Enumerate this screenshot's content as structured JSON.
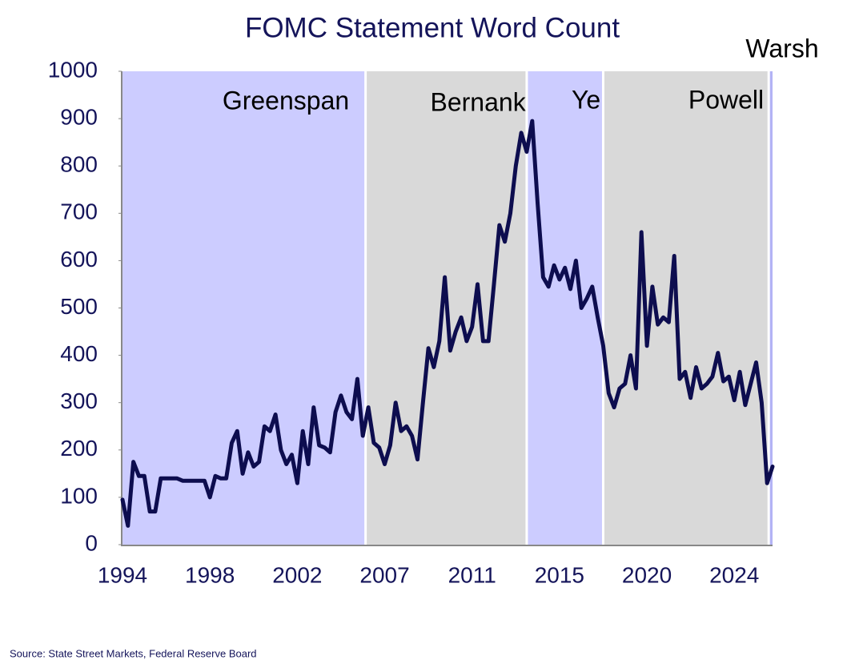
{
  "chart_data": {
    "type": "line",
    "title": "FOMC Statement Word Count",
    "source": "Source: State Street Markets, Federal Reserve Board",
    "categories": [
      "1994",
      null,
      null,
      null,
      null,
      null,
      null,
      null,
      null,
      null,
      null,
      null,
      null,
      null,
      null,
      null,
      "1998",
      null,
      null,
      null,
      null,
      null,
      null,
      null,
      null,
      null,
      null,
      null,
      null,
      null,
      null,
      null,
      "2002",
      null,
      null,
      null,
      null,
      null,
      null,
      null,
      null,
      null,
      null,
      null,
      null,
      null,
      null,
      null,
      "2007",
      null,
      null,
      null,
      null,
      null,
      null,
      null,
      null,
      null,
      null,
      null,
      null,
      null,
      null,
      null,
      "2011",
      null,
      null,
      null,
      null,
      null,
      null,
      null,
      null,
      null,
      null,
      null,
      null,
      null,
      null,
      null,
      "2015",
      null,
      null,
      null,
      null,
      null,
      null,
      null,
      null,
      null,
      null,
      null,
      null,
      null,
      null,
      null,
      "2020",
      null,
      null,
      null,
      null,
      null,
      null,
      null,
      null,
      null,
      null,
      null,
      null,
      null,
      null,
      null,
      "2024",
      null,
      null,
      null,
      null,
      null,
      null,
      null
    ],
    "series": [
      {
        "color": "#0d0d4f",
        "values": [
          95,
          40,
          175,
          145,
          145,
          70,
          70,
          140,
          140,
          140,
          140,
          135,
          135,
          135,
          135,
          135,
          100,
          145,
          140,
          140,
          215,
          240,
          150,
          195,
          165,
          175,
          250,
          240,
          275,
          200,
          170,
          190,
          130,
          240,
          170,
          290,
          210,
          205,
          195,
          280,
          315,
          280,
          265,
          350,
          230,
          290,
          215,
          205,
          170,
          210,
          300,
          240,
          250,
          230,
          180,
          300,
          415,
          375,
          430,
          565,
          410,
          450,
          480,
          430,
          460,
          550,
          430,
          430,
          550,
          675,
          640,
          700,
          800,
          870,
          830,
          895,
          720,
          565,
          545,
          590,
          560,
          585,
          540,
          600,
          500,
          520,
          545,
          480,
          420,
          320,
          290,
          330,
          340,
          400,
          330,
          660,
          420,
          545,
          465,
          480,
          470,
          610,
          350,
          365,
          310,
          375,
          330,
          340,
          355,
          405,
          345,
          355,
          305,
          365,
          295,
          340,
          385,
          300,
          130,
          165
        ]
      }
    ],
    "regions": [
      {
        "name": "Greenspan",
        "start": 0,
        "end": 44.5,
        "color": "#ccccff"
      },
      {
        "name": "Bernanke",
        "start": 44.5,
        "end": 74,
        "color": "#d9d9d9"
      },
      {
        "name": "Yellen",
        "start": 74,
        "end": 88,
        "color": "#ccccff"
      },
      {
        "name": "Powell",
        "start": 88,
        "end": 118.3,
        "color": "#d9d9d9"
      },
      {
        "name": "Warsh",
        "start": 118.3,
        "end": 119,
        "color": "#b3b3f5"
      }
    ],
    "ylim": [
      0,
      1000
    ],
    "yticks": [
      0,
      100,
      200,
      300,
      400,
      500,
      600,
      700,
      800,
      900,
      1000
    ]
  }
}
